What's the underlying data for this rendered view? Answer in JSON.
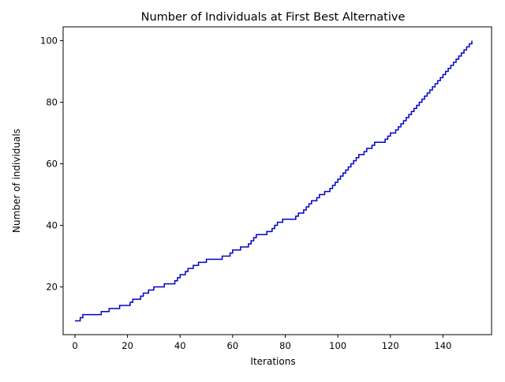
{
  "chart_data": {
    "type": "line",
    "title": "Number of Individuals at First Best Alternative",
    "xlabel": "Iterations",
    "ylabel": "Number of individuals",
    "xlim": [
      -4.5,
      158.5
    ],
    "ylim": [
      4.5,
      104.5
    ],
    "x_ticks": [
      0,
      20,
      40,
      60,
      80,
      100,
      120,
      140
    ],
    "y_ticks": [
      20,
      40,
      60,
      80,
      100
    ],
    "grid": false,
    "legend": null,
    "step": true,
    "series": [
      {
        "color": "#0000cc",
        "points": [
          [
            0,
            9
          ],
          [
            2,
            10
          ],
          [
            3,
            11
          ],
          [
            10,
            12
          ],
          [
            13,
            13
          ],
          [
            17,
            14
          ],
          [
            21,
            15
          ],
          [
            22,
            16
          ],
          [
            25,
            17
          ],
          [
            26,
            18
          ],
          [
            28,
            19
          ],
          [
            30,
            20
          ],
          [
            34,
            21
          ],
          [
            38,
            22
          ],
          [
            39,
            23
          ],
          [
            40,
            24
          ],
          [
            42,
            25
          ],
          [
            43,
            26
          ],
          [
            45,
            27
          ],
          [
            47,
            28
          ],
          [
            50,
            29
          ],
          [
            56,
            30
          ],
          [
            59,
            31
          ],
          [
            60,
            32
          ],
          [
            63,
            33
          ],
          [
            66,
            34
          ],
          [
            67,
            35
          ],
          [
            68,
            36
          ],
          [
            69,
            37
          ],
          [
            73,
            38
          ],
          [
            75,
            39
          ],
          [
            76,
            40
          ],
          [
            77,
            41
          ],
          [
            79,
            42
          ],
          [
            84,
            43
          ],
          [
            85,
            44
          ],
          [
            87,
            45
          ],
          [
            88,
            46
          ],
          [
            89,
            47
          ],
          [
            90,
            48
          ],
          [
            92,
            49
          ],
          [
            93,
            50
          ],
          [
            95,
            51
          ],
          [
            97,
            52
          ],
          [
            98,
            53
          ],
          [
            99,
            54
          ],
          [
            100,
            55
          ],
          [
            101,
            56
          ],
          [
            102,
            57
          ],
          [
            103,
            58
          ],
          [
            104,
            59
          ],
          [
            105,
            60
          ],
          [
            106,
            61
          ],
          [
            107,
            62
          ],
          [
            108,
            63
          ],
          [
            110,
            64
          ],
          [
            111,
            65
          ],
          [
            113,
            66
          ],
          [
            114,
            67
          ],
          [
            118,
            68
          ],
          [
            119,
            69
          ],
          [
            120,
            70
          ],
          [
            122,
            71
          ],
          [
            123,
            72
          ],
          [
            124,
            73
          ],
          [
            125,
            74
          ],
          [
            126,
            75
          ],
          [
            127,
            76
          ],
          [
            128,
            77
          ],
          [
            129,
            78
          ],
          [
            130,
            79
          ],
          [
            131,
            80
          ],
          [
            132,
            81
          ],
          [
            133,
            82
          ],
          [
            134,
            83
          ],
          [
            135,
            84
          ],
          [
            136,
            85
          ],
          [
            137,
            86
          ],
          [
            138,
            87
          ],
          [
            139,
            88
          ],
          [
            140,
            89
          ],
          [
            141,
            90
          ],
          [
            142,
            91
          ],
          [
            143,
            92
          ],
          [
            144,
            93
          ],
          [
            145,
            94
          ],
          [
            146,
            95
          ],
          [
            147,
            96
          ],
          [
            148,
            97
          ],
          [
            149,
            98
          ],
          [
            150,
            99
          ],
          [
            151,
            100
          ]
        ]
      }
    ]
  }
}
